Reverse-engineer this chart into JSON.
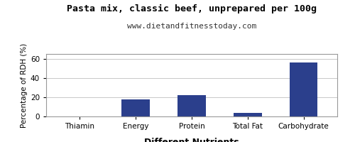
{
  "title": "Pasta mix, classic beef, unprepared per 100g",
  "subtitle": "www.dietandfitnesstoday.com",
  "xlabel": "Different Nutrients",
  "ylabel": "Percentage of RDH (%)",
  "categories": [
    "Thiamin",
    "Energy",
    "Protein",
    "Total Fat",
    "Carbohydrate"
  ],
  "values": [
    0.3,
    18,
    22,
    4,
    56
  ],
  "bar_color": "#2b3f8c",
  "ylim": [
    0,
    65
  ],
  "yticks": [
    0,
    20,
    40,
    60
  ],
  "background_color": "#ffffff",
  "grid_color": "#c8c8c8",
  "title_fontsize": 9.5,
  "subtitle_fontsize": 8,
  "xlabel_fontsize": 9,
  "ylabel_fontsize": 7.5,
  "tick_fontsize": 7.5,
  "border_color": "#999999"
}
